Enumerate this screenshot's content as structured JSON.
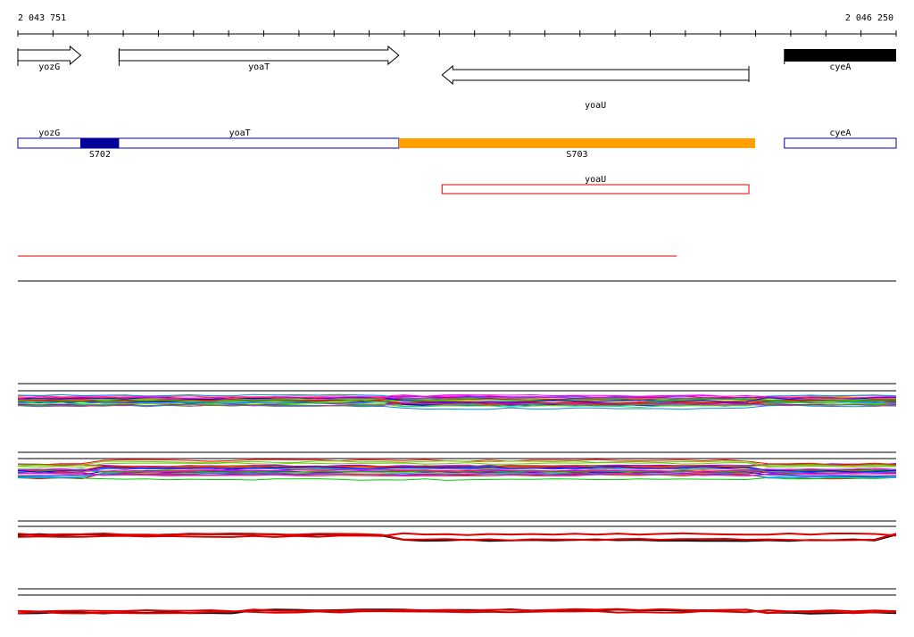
{
  "ruler": {
    "start_label": "2 043 751",
    "end_label": "2 046 250",
    "start_bp": 2043751,
    "end_bp": 2046250
  },
  "genes": [
    {
      "name": "yozG",
      "strand": "+",
      "start_bp": 2043751,
      "end_bp": 2043930,
      "fill": "#ffffff",
      "row": 1
    },
    {
      "name": "yoaT",
      "strand": "+",
      "start_bp": 2044039,
      "end_bp": 2044835,
      "fill": "#ffffff",
      "row": 1
    },
    {
      "name": "yoaU",
      "strand": "-",
      "start_bp": 2044958,
      "end_bp": 2045831,
      "fill": "#ffffff",
      "row": 2
    },
    {
      "name": "cyeA",
      "strand": "+",
      "start_bp": 2045932,
      "end_bp": 2046250,
      "fill": "#000000",
      "row": 1
    }
  ],
  "transcripts": [
    {
      "name": "yozG",
      "start_bp": 2043751,
      "end_bp": 2043930,
      "color": "#0000aa"
    },
    {
      "name": "yoaT",
      "start_bp": 2043930,
      "end_bp": 2044835,
      "color": "#0000aa"
    },
    {
      "name": "cyeA",
      "start_bp": 2045932,
      "end_bp": 2046250,
      "color": "#0000aa"
    }
  ],
  "segments": [
    {
      "name": "S702",
      "start_bp": 2043930,
      "end_bp": 2044039,
      "color": "#000099"
    },
    {
      "name": "S703",
      "start_bp": 2044835,
      "end_bp": 2045849,
      "color": "#ffa000"
    }
  ],
  "utr": {
    "name": "yoaU",
    "start_bp": 2044958,
    "end_bp": 2045831,
    "color": "#dd0000"
  },
  "red_line": {
    "start_bp": 2043751,
    "end_bp": 2045626,
    "color": "#dd0000"
  },
  "colors": {
    "track_line": "#000000",
    "expression_palette": [
      "#ff0000",
      "#00cc00",
      "#0000ff",
      "#ff00ff",
      "#00cccc",
      "#cccc00",
      "#ff8800",
      "#8800ff",
      "#0088ff",
      "#cc0066",
      "#66cc00",
      "#996633"
    ]
  }
}
